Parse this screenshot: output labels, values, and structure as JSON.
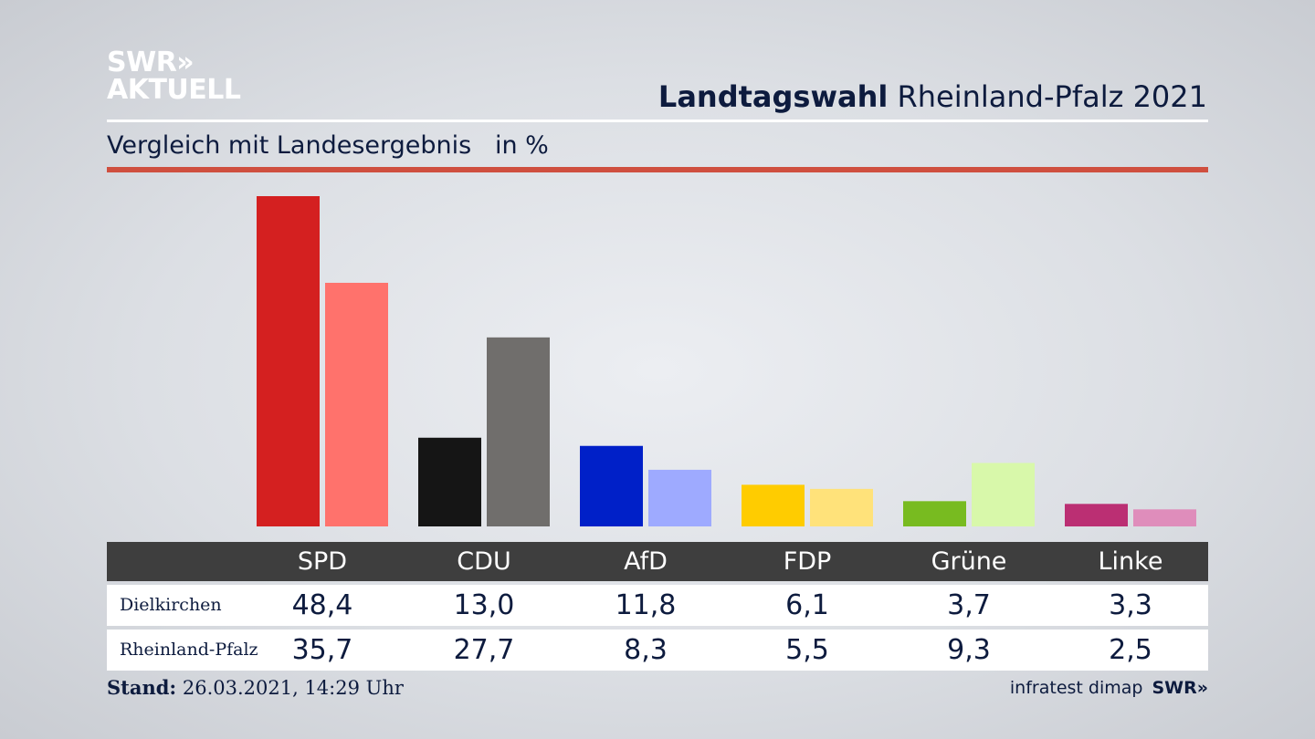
{
  "branding": {
    "logo_line1": "SWR»",
    "logo_line2": "AKTUELL",
    "footer_logo": "SWR»"
  },
  "header": {
    "title_bold": "Landtagswahl",
    "title_rest": " Rheinland-Pfalz 2021",
    "subtitle": "Vergleich mit Landesergebnis   in %"
  },
  "footer": {
    "stand_label": "Stand:",
    "stand_value": " 26.03.2021, 14:29 Uhr",
    "source": "infratest dimap"
  },
  "chart_data": {
    "type": "bar",
    "categories": [
      "SPD",
      "CDU",
      "AfD",
      "FDP",
      "Grüne",
      "Linke"
    ],
    "series": [
      {
        "name": "Dielkirchen",
        "values": [
          48.4,
          13.0,
          11.8,
          6.1,
          3.7,
          3.3
        ],
        "labels": [
          "48,4",
          "13,0",
          "11,8",
          "6,1",
          "3,7",
          "3,3"
        ],
        "colors": [
          "#d42020",
          "#151515",
          "#0020c8",
          "#ffcc00",
          "#78bb20",
          "#bb2f73"
        ]
      },
      {
        "name": "Rheinland-Pfalz",
        "values": [
          35.7,
          27.7,
          8.3,
          5.5,
          9.3,
          2.5
        ],
        "labels": [
          "35,7",
          "27,7",
          "8,3",
          "5,5",
          "9,3",
          "2,5"
        ],
        "colors": [
          "#ff726c",
          "#706e6c",
          "#9eaaff",
          "#ffe27a",
          "#d8f8aa",
          "#df8dbb"
        ]
      }
    ],
    "ylim": [
      0,
      48.4
    ],
    "grid": false,
    "legend": "table-below"
  }
}
